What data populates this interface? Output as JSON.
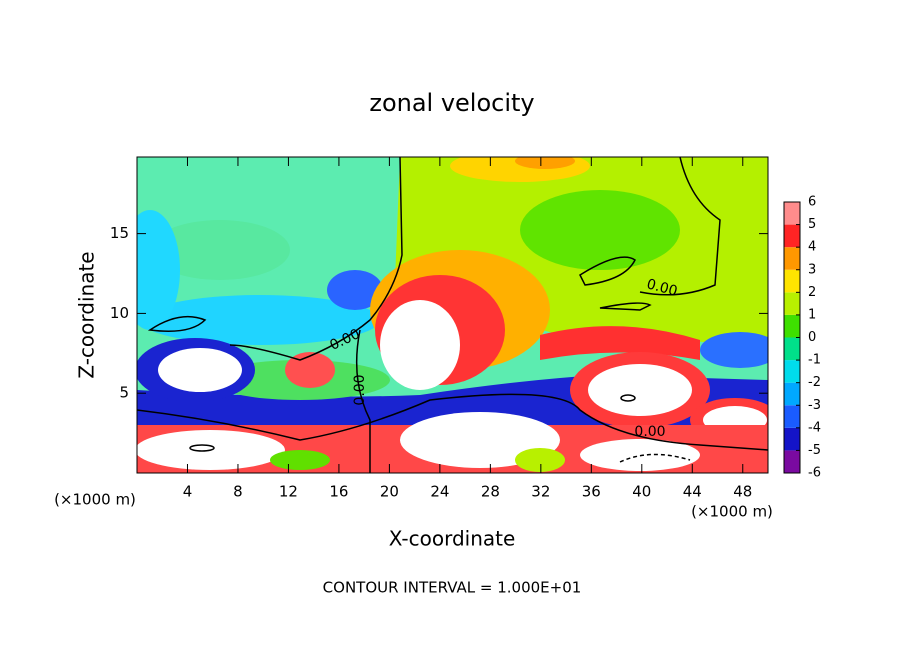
{
  "chart_data": {
    "type": "contour",
    "title": "zonal velocity",
    "xlabel": "X-coordinate",
    "ylabel": "Z-coordinate",
    "x_unit": "(×1000 m)",
    "note": "CONTOUR INTERVAL = 1.000E+01",
    "xlim": [
      0,
      50
    ],
    "ylim": [
      0,
      19.8
    ],
    "xticks": [
      4,
      8,
      12,
      16,
      20,
      24,
      28,
      32,
      36,
      40,
      44,
      48
    ],
    "yticks": [
      5,
      10,
      15
    ],
    "contour_labels": [
      "0.00",
      "0.00",
      "0.00",
      "0.00"
    ],
    "colorbar": {
      "ticks": [
        -6,
        -5,
        -4,
        -3,
        -2,
        -1,
        0,
        1,
        2,
        3,
        4,
        5,
        6
      ],
      "colors": [
        "#7a0aa0",
        "#1414c8",
        "#1a5cff",
        "#00a8ff",
        "#00dcec",
        "#00e08a",
        "#3ee000",
        "#b8f000",
        "#ffe400",
        "#ff9800",
        "#ff2424",
        "#ff8c8c"
      ]
    }
  }
}
